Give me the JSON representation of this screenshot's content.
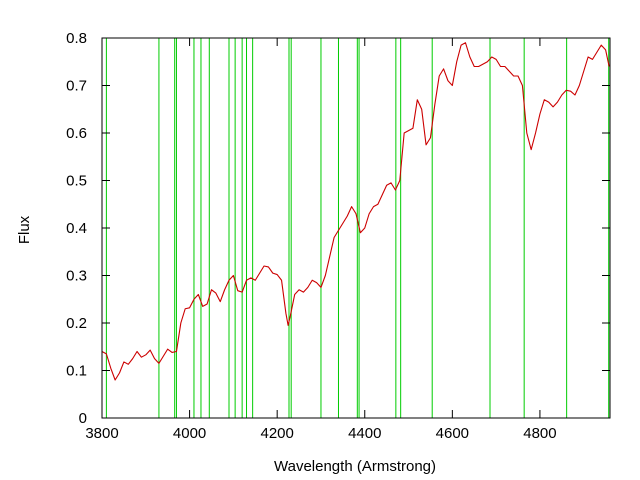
{
  "chart_data": {
    "type": "line",
    "title": "",
    "xlabel": "Wavelength (Armstrong)",
    "ylabel": "Flux",
    "xlim": [
      3800,
      4960
    ],
    "ylim": [
      0,
      0.8
    ],
    "x_ticks": [
      3800,
      4000,
      4200,
      4400,
      4600,
      4800
    ],
    "y_ticks": [
      0,
      0.1,
      0.2,
      0.3,
      0.4,
      0.5,
      0.6,
      0.7,
      0.8
    ],
    "x_tick_labels": [
      "3800",
      "4000",
      "4200",
      "4400",
      "4600",
      "4800"
    ],
    "y_tick_labels": [
      "0",
      "0.1",
      "0.2",
      "0.3",
      "0.4",
      "0.5",
      "0.6",
      "0.7",
      "0.8"
    ],
    "grid": false,
    "legend": "none",
    "series": [
      {
        "color": "#cc0000",
        "x": [
          3800,
          3810,
          3820,
          3830,
          3840,
          3850,
          3860,
          3870,
          3880,
          3890,
          3900,
          3910,
          3920,
          3930,
          3940,
          3950,
          3960,
          3970,
          3980,
          3990,
          4000,
          4010,
          4020,
          4030,
          4040,
          4050,
          4060,
          4070,
          4080,
          4090,
          4100,
          4110,
          4120,
          4130,
          4140,
          4150,
          4160,
          4170,
          4180,
          4190,
          4200,
          4210,
          4220,
          4225,
          4230,
          4240,
          4250,
          4260,
          4270,
          4280,
          4290,
          4300,
          4310,
          4320,
          4330,
          4340,
          4350,
          4360,
          4370,
          4380,
          4390,
          4400,
          4410,
          4420,
          4430,
          4440,
          4450,
          4460,
          4470,
          4480,
          4490,
          4500,
          4510,
          4520,
          4530,
          4540,
          4550,
          4560,
          4570,
          4580,
          4590,
          4600,
          4610,
          4620,
          4630,
          4640,
          4650,
          4660,
          4670,
          4680,
          4690,
          4700,
          4710,
          4720,
          4730,
          4740,
          4750,
          4760,
          4770,
          4780,
          4790,
          4800,
          4810,
          4820,
          4830,
          4840,
          4850,
          4860,
          4870,
          4880,
          4890,
          4900,
          4910,
          4920,
          4930,
          4940,
          4950,
          4958
        ],
        "y": [
          0.14,
          0.135,
          0.105,
          0.08,
          0.095,
          0.118,
          0.113,
          0.125,
          0.14,
          0.128,
          0.133,
          0.143,
          0.125,
          0.115,
          0.13,
          0.145,
          0.138,
          0.14,
          0.2,
          0.23,
          0.232,
          0.25,
          0.26,
          0.235,
          0.24,
          0.27,
          0.263,
          0.245,
          0.27,
          0.29,
          0.3,
          0.268,
          0.265,
          0.29,
          0.295,
          0.29,
          0.305,
          0.32,
          0.318,
          0.305,
          0.302,
          0.29,
          0.22,
          0.195,
          0.215,
          0.26,
          0.27,
          0.265,
          0.275,
          0.29,
          0.285,
          0.275,
          0.3,
          0.34,
          0.38,
          0.395,
          0.41,
          0.425,
          0.445,
          0.43,
          0.39,
          0.4,
          0.43,
          0.445,
          0.45,
          0.47,
          0.49,
          0.495,
          0.48,
          0.5,
          0.6,
          0.605,
          0.61,
          0.67,
          0.65,
          0.575,
          0.59,
          0.66,
          0.72,
          0.735,
          0.71,
          0.7,
          0.75,
          0.785,
          0.79,
          0.76,
          0.74,
          0.74,
          0.745,
          0.75,
          0.76,
          0.755,
          0.74,
          0.74,
          0.73,
          0.72,
          0.72,
          0.7,
          0.6,
          0.565,
          0.6,
          0.64,
          0.67,
          0.665,
          0.655,
          0.665,
          0.68,
          0.69,
          0.688,
          0.68,
          0.7,
          0.73,
          0.76,
          0.755,
          0.77,
          0.785,
          0.775,
          0.74
        ]
      }
    ],
    "vertical_lines": {
      "color": "#00cc00",
      "x": [
        3810,
        3930,
        3966,
        3970,
        4010,
        4026,
        4045,
        4090,
        4104,
        4120,
        4130,
        4144,
        4227,
        4232,
        4300,
        4340,
        4383,
        4387,
        4471,
        4482,
        4554,
        4686,
        4764,
        4861,
        4957
      ]
    }
  }
}
